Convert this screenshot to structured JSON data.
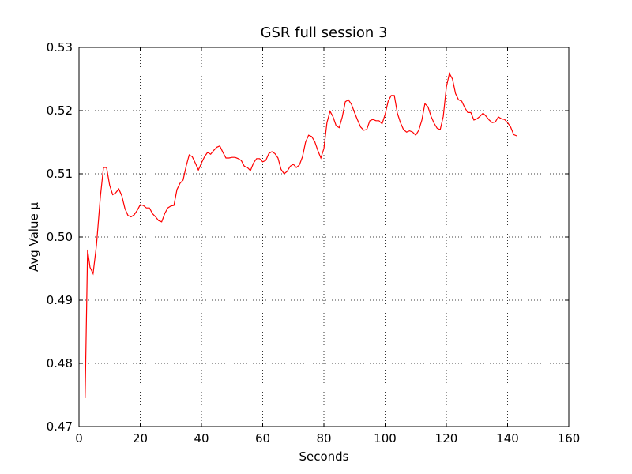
{
  "chart_data": {
    "type": "line",
    "title": "GSR full session 3",
    "x_label": "Seconds",
    "y_label": "Avg Value µ",
    "x": [
      2,
      2.8,
      3.6,
      4.6,
      5.7,
      7,
      8,
      9,
      10,
      11,
      12,
      13,
      14,
      15,
      16,
      17,
      18,
      19,
      20,
      21,
      22,
      23,
      24,
      25,
      26,
      27,
      28,
      29,
      30,
      31,
      32,
      33,
      34,
      35,
      36,
      37,
      38,
      39,
      40,
      41,
      42,
      43,
      44,
      45,
      46,
      47,
      48,
      49,
      50,
      51,
      52,
      53,
      54,
      55,
      56,
      57,
      58,
      59,
      60,
      61,
      62,
      63,
      64,
      65,
      66,
      67,
      68,
      69,
      70,
      71,
      72,
      73,
      74,
      75,
      76,
      77,
      78,
      79,
      80,
      81,
      82,
      83,
      84,
      85,
      86,
      87,
      88,
      89,
      90,
      91,
      92,
      93,
      94,
      95,
      96,
      97,
      98,
      99,
      100,
      101,
      102,
      103,
      104,
      105,
      106,
      107,
      108,
      109,
      110,
      111,
      112,
      113,
      114,
      115,
      116,
      117,
      118,
      119,
      120,
      121,
      122,
      123,
      124,
      125,
      126,
      127,
      128,
      129,
      130,
      131,
      132,
      133,
      134,
      135,
      136,
      137,
      138,
      139,
      140,
      141,
      142,
      143
    ],
    "series": [
      {
        "name": "GSR",
        "color": "#ff0000",
        "values": [
          0.4745,
          0.498,
          0.4952,
          0.4942,
          0.4987,
          0.5065,
          0.511,
          0.511,
          0.5082,
          0.5067,
          0.507,
          0.5076,
          0.5065,
          0.5045,
          0.5034,
          0.5032,
          0.5035,
          0.5042,
          0.5051,
          0.505,
          0.5046,
          0.5046,
          0.5037,
          0.5032,
          0.5026,
          0.5024,
          0.5037,
          0.5046,
          0.5049,
          0.505,
          0.5075,
          0.5085,
          0.509,
          0.5112,
          0.513,
          0.5127,
          0.5117,
          0.5106,
          0.5117,
          0.5127,
          0.5134,
          0.5131,
          0.5137,
          0.5142,
          0.5144,
          0.5134,
          0.5125,
          0.5125,
          0.5126,
          0.5126,
          0.5124,
          0.5121,
          0.5112,
          0.511,
          0.5105,
          0.5117,
          0.5124,
          0.5124,
          0.5119,
          0.5121,
          0.5132,
          0.5135,
          0.5132,
          0.5125,
          0.5107,
          0.51,
          0.5104,
          0.5112,
          0.5115,
          0.511,
          0.5114,
          0.5127,
          0.515,
          0.5161,
          0.5159,
          0.5151,
          0.5137,
          0.5125,
          0.514,
          0.5181,
          0.5199,
          0.519,
          0.5176,
          0.5173,
          0.519,
          0.5214,
          0.5217,
          0.521,
          0.5197,
          0.5185,
          0.5174,
          0.5169,
          0.517,
          0.5184,
          0.5186,
          0.5184,
          0.5184,
          0.5179,
          0.5194,
          0.5215,
          0.5224,
          0.5224,
          0.5196,
          0.5181,
          0.517,
          0.5166,
          0.5168,
          0.5166,
          0.5161,
          0.5169,
          0.5185,
          0.5211,
          0.5206,
          0.5191,
          0.518,
          0.5172,
          0.517,
          0.5191,
          0.5237,
          0.5259,
          0.525,
          0.5227,
          0.5217,
          0.5215,
          0.5205,
          0.5197,
          0.5197,
          0.5185,
          0.5187,
          0.5191,
          0.5196,
          0.5191,
          0.5185,
          0.5181,
          0.5182,
          0.519,
          0.5187,
          0.5186,
          0.5181,
          0.5174,
          0.5162,
          0.516
        ]
      }
    ],
    "xlim": [
      0,
      160
    ],
    "xticks": [
      0,
      20,
      40,
      60,
      80,
      100,
      120,
      140,
      160
    ],
    "ylim": [
      0.47,
      0.53
    ],
    "yticks": [
      0.47,
      0.48,
      0.49,
      {
        "value": 0.5,
        "label": "0.50"
      },
      0.51,
      0.52,
      0.53
    ],
    "grid": true
  }
}
